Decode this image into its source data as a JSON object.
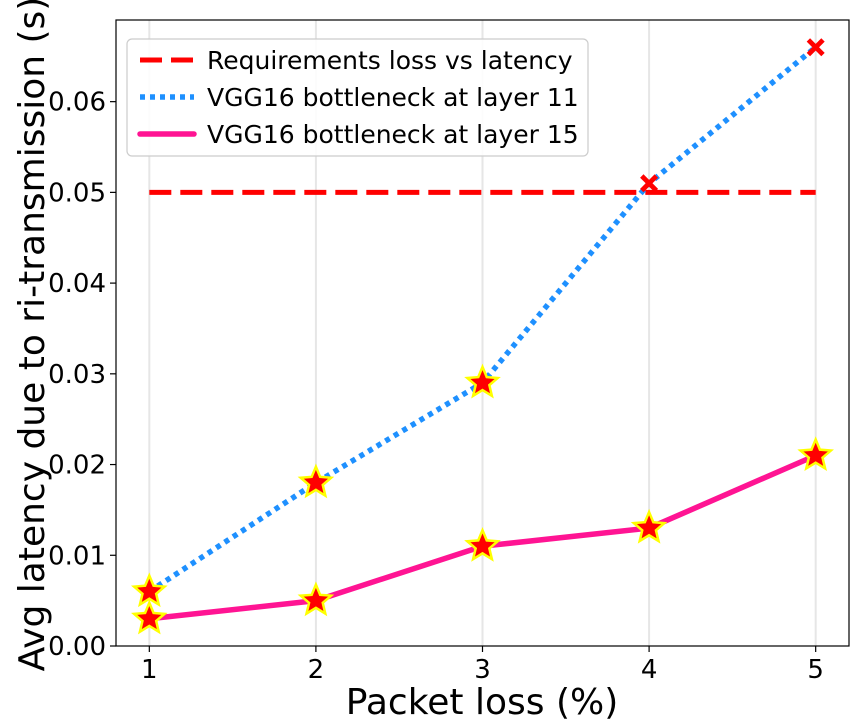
{
  "chart_data": {
    "type": "line",
    "title": "",
    "xlabel": "Packet loss (%)",
    "ylabel": "Avg latency due to ri-transmission (s)",
    "x": [
      1,
      2,
      3,
      4,
      5
    ],
    "xticks": [
      "1",
      "2",
      "3",
      "4",
      "5"
    ],
    "yticks": [
      "0.00",
      "0.01",
      "0.02",
      "0.03",
      "0.04",
      "0.05",
      "0.06"
    ],
    "xlim": [
      0.8,
      5.2
    ],
    "ylim": [
      0.0,
      0.069
    ],
    "grid": "vertical",
    "legend_position": "top-left",
    "series": [
      {
        "name": "Requirements loss vs latency",
        "style": "dashed",
        "color": "#ff0000",
        "values": [
          0.05,
          0.05,
          0.05,
          0.05,
          0.05
        ],
        "markers": []
      },
      {
        "name": "VGG16 bottleneck at layer 11",
        "style": "dotted",
        "color": "#1e90ff",
        "values": [
          0.006,
          0.018,
          0.029,
          0.051,
          0.066
        ],
        "markers": [
          "star",
          "star",
          "star",
          "x",
          "x"
        ]
      },
      {
        "name": "VGG16 bottleneck at layer 15",
        "style": "solid",
        "color": "#ff1493",
        "values": [
          0.003,
          0.005,
          0.011,
          0.013,
          0.021
        ],
        "markers": [
          "star",
          "star",
          "star",
          "star",
          "star"
        ]
      }
    ],
    "marker_colors": {
      "star_fill": "#ff0000",
      "star_edge": "#ffff00",
      "x_fill": "#ff0000"
    }
  }
}
